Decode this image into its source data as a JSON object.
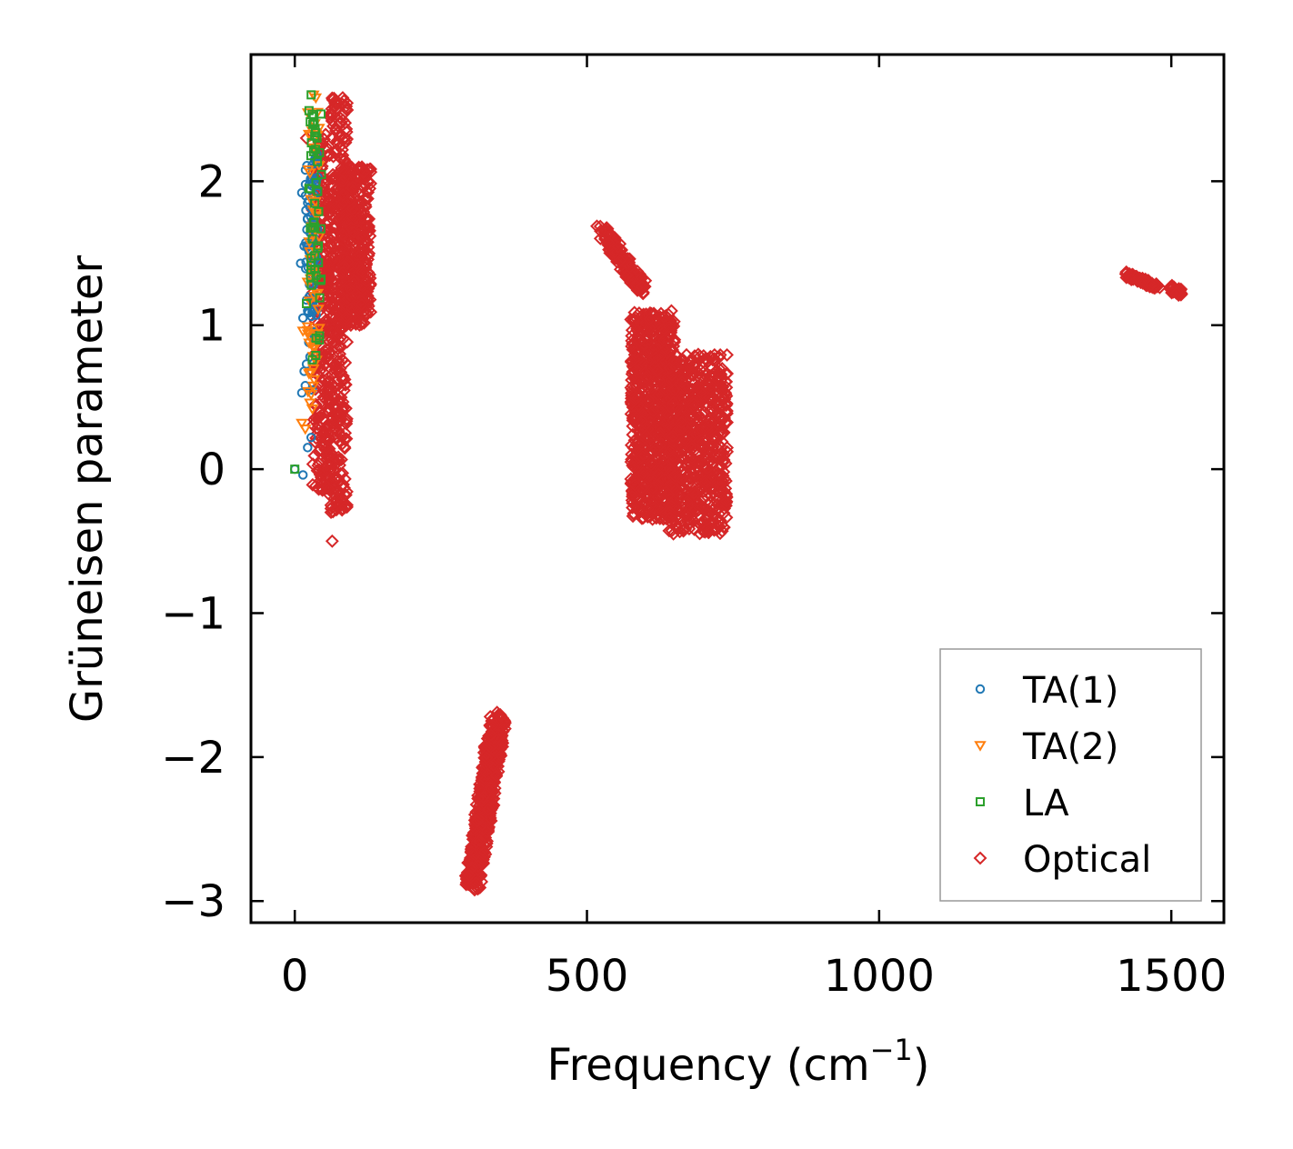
{
  "chart_data": {
    "type": "scatter",
    "xlabel": "Frequency (cm",
    "xlabel_sup": "−1",
    "xlabel_end": ")",
    "ylabel": "Grüneisen parameter",
    "xlim": [
      -75,
      1590
    ],
    "ylim": [
      -3.15,
      2.88
    ],
    "xticks": [
      0,
      500,
      1000,
      1500
    ],
    "xtick_labels": [
      "0",
      "500",
      "1000",
      "1500"
    ],
    "yticks": [
      -3,
      -2,
      -1,
      0,
      1,
      2
    ],
    "ytick_labels": [
      "−3",
      "−2",
      "−1",
      "0",
      "1",
      "2"
    ],
    "legend_position": "lower right",
    "series": [
      {
        "name": "TA(1)",
        "color": "#1f77b4",
        "marker": "circle",
        "points": [
          [
            0,
            0
          ],
          [
            14,
            -0.04
          ],
          [
            22,
            0.15
          ],
          [
            28,
            0.22
          ],
          [
            12,
            0.53
          ],
          [
            18,
            0.58
          ],
          [
            16,
            0.68
          ],
          [
            20,
            0.73
          ],
          [
            26,
            0.78
          ],
          [
            30,
            0.55
          ],
          [
            24,
            0.88
          ],
          [
            14,
            1.05
          ],
          [
            22,
            1.1
          ],
          [
            10,
            1.43
          ],
          [
            16,
            1.55
          ],
          [
            26,
            1.2
          ],
          [
            30,
            1.35
          ],
          [
            12,
            1.92
          ],
          [
            22,
            1.85
          ],
          [
            28,
            2.0
          ],
          [
            34,
            2.15
          ],
          [
            32,
            1.7
          ]
        ],
        "clusters": [
          {
            "x": [
              18,
              40
            ],
            "y": [
              0.9,
              2.2
            ],
            "n": 70
          }
        ]
      },
      {
        "name": "TA(2)",
        "color": "#ff7f0e",
        "marker": "triangle-down",
        "points": [
          [
            12,
            0.32
          ],
          [
            18,
            0.28
          ],
          [
            14,
            0.96
          ],
          [
            22,
            0.99
          ],
          [
            26,
            0.46
          ],
          [
            28,
            0.52
          ],
          [
            32,
            2.6
          ],
          [
            36,
            2.58
          ],
          [
            34,
            2.4
          ],
          [
            30,
            2.35
          ],
          [
            22,
            1.3
          ],
          [
            30,
            0.42
          ]
        ],
        "clusters": [
          {
            "x": [
              22,
              42
            ],
            "y": [
              0.5,
              2.5
            ],
            "n": 50
          }
        ]
      },
      {
        "name": "LA",
        "color": "#2ca02c",
        "marker": "square",
        "points": [
          [
            0,
            0
          ],
          [
            28,
            2.6
          ],
          [
            32,
            2.45
          ],
          [
            20,
            1.15
          ],
          [
            36,
            0.79
          ],
          [
            30,
            0.76
          ],
          [
            38,
            2.3
          ],
          [
            24,
            1.95
          ],
          [
            30,
            1.6
          ]
        ],
        "clusters": [
          {
            "x": [
              24,
              46
            ],
            "y": [
              0.8,
              2.5
            ],
            "n": 45
          }
        ]
      },
      {
        "name": "Optical",
        "color": "#d62728",
        "marker": "diamond",
        "points": [
          [
            64,
            -0.5
          ],
          [
            62,
            -0.3
          ],
          [
            62,
            -0.25
          ],
          [
            50,
            -0.1
          ],
          [
            36,
            0.45
          ],
          [
            20,
            2.3
          ],
          [
            82,
            2.58
          ],
          [
            88,
            2.52
          ]
        ],
        "clusters": [
          {
            "x": [
              30,
              60
            ],
            "y": [
              -0.15,
              2.35
            ],
            "n": 260
          },
          {
            "x": [
              56,
              90
            ],
            "y": [
              -0.3,
              2.58
            ],
            "n": 380
          },
          {
            "x": [
              78,
              130
            ],
            "y": [
              1.0,
              2.1
            ],
            "n": 420
          },
          {
            "type": "line",
            "from": [
              525,
              1.67
            ],
            "to": [
              595,
              1.25
            ],
            "spread": [
              10,
              0.04
            ],
            "n": 150
          },
          {
            "x": [
              575,
              650
            ],
            "y": [
              -0.35,
              1.1
            ],
            "n": 800
          },
          {
            "x": [
              640,
              740
            ],
            "y": [
              -0.45,
              0.8
            ],
            "n": 700
          },
          {
            "type": "line",
            "from": [
              305,
              -2.88
            ],
            "to": [
              348,
              -1.72
            ],
            "spread": [
              14,
              0.05
            ],
            "n": 550
          },
          {
            "type": "line",
            "from": [
              1425,
              1.35
            ],
            "to": [
              1475,
              1.26
            ],
            "spread": [
              6,
              0.02
            ],
            "n": 60
          },
          {
            "type": "line",
            "from": [
              1497,
              1.26
            ],
            "to": [
              1520,
              1.22
            ],
            "spread": [
              6,
              0.02
            ],
            "n": 30
          }
        ]
      }
    ]
  }
}
